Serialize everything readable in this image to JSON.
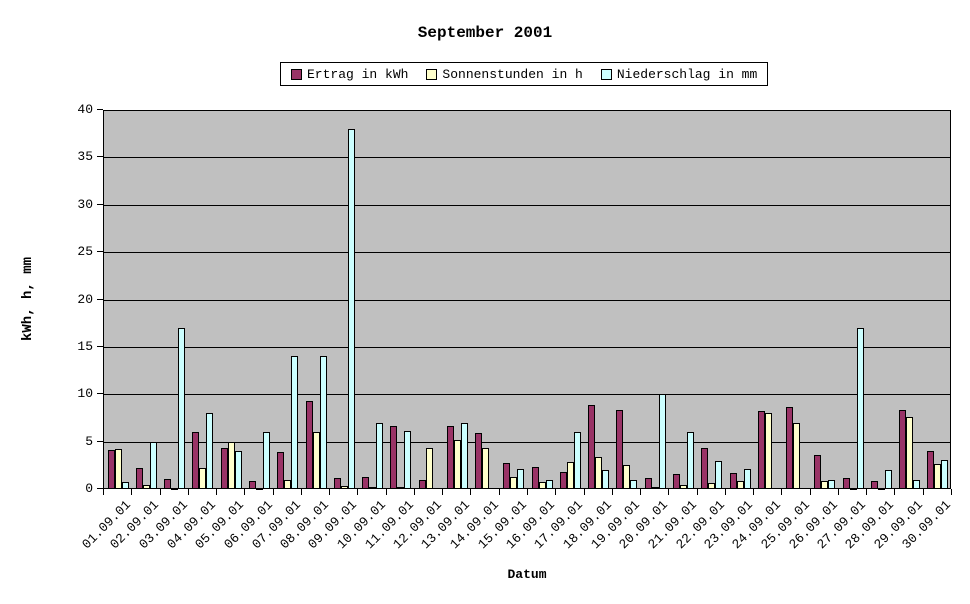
{
  "title": "September 2001",
  "axes": {
    "y_title": "kWh, h, mm",
    "x_title": "Datum",
    "y_ticks": [
      "0",
      "5",
      "10",
      "15",
      "20",
      "25",
      "30",
      "35",
      "40"
    ]
  },
  "legend": [
    {
      "label": "Ertrag in kWh",
      "color": "#993366"
    },
    {
      "label": "Sonnenstunden in h",
      "color": "#FFFFCC"
    },
    {
      "label": "Niederschlag in mm",
      "color": "#CCFFFF"
    }
  ],
  "colors": {
    "plot_background": "#C0C0C0",
    "grid": "#000000",
    "page_background": "#FFFFFF",
    "bar_border": "#000000"
  },
  "chart_data": {
    "type": "bar",
    "title": "September 2001",
    "xlabel": "Datum",
    "ylabel": "kWh, h, mm",
    "ylim": [
      0,
      40
    ],
    "ytick_step": 5,
    "grid": true,
    "legend_position": "top-center",
    "plot_background": "#C0C0C0",
    "categories": [
      "01.09.01",
      "02.09.01",
      "03.09.01",
      "04.09.01",
      "05.09.01",
      "06.09.01",
      "07.09.01",
      "08.09.01",
      "09.09.01",
      "10.09.01",
      "11.09.01",
      "12.09.01",
      "13.09.01",
      "14.09.01",
      "15.09.01",
      "16.09.01",
      "17.09.01",
      "18.09.01",
      "19.09.01",
      "20.09.01",
      "21.09.01",
      "22.09.01",
      "23.09.01",
      "24.09.01",
      "25.09.01",
      "26.09.01",
      "27.09.01",
      "28.09.01",
      "29.09.01",
      "30.09.01"
    ],
    "series": [
      {
        "name": "Ertrag in kWh",
        "color": "#993366",
        "values": [
          4.1,
          2.2,
          1.1,
          6.0,
          4.3,
          0.8,
          3.9,
          9.3,
          1.2,
          1.3,
          6.6,
          0.9,
          6.6,
          5.9,
          2.7,
          2.3,
          1.8,
          8.9,
          8.3,
          1.2,
          1.6,
          4.3,
          1.7,
          8.2,
          8.7,
          3.6,
          1.2,
          0.8,
          8.3,
          4.0
        ]
      },
      {
        "name": "Sonnenstunden in h",
        "color": "#FFFFCC",
        "values": [
          4.2,
          0.4,
          0.1,
          2.2,
          5.0,
          0.1,
          1.0,
          6.0,
          0.3,
          0.2,
          0.2,
          4.3,
          5.2,
          4.3,
          1.3,
          0.7,
          2.9,
          3.4,
          2.5,
          0.2,
          0.4,
          0.6,
          0.8,
          8.0,
          7.0,
          0.8,
          0.1,
          0.1,
          7.6,
          2.6
        ]
      },
      {
        "name": "Niederschlag in mm",
        "color": "#CCFFFF",
        "values": [
          0.7,
          5.0,
          17.0,
          8.0,
          4.0,
          6.0,
          14.0,
          14.0,
          38.0,
          7.0,
          6.1,
          0,
          7.0,
          0,
          2.1,
          0.9,
          6.0,
          2.0,
          1.0,
          10.0,
          6.0,
          3.0,
          2.1,
          0,
          0,
          1.0,
          17.0,
          2.0,
          1.0,
          3.1
        ]
      }
    ]
  }
}
